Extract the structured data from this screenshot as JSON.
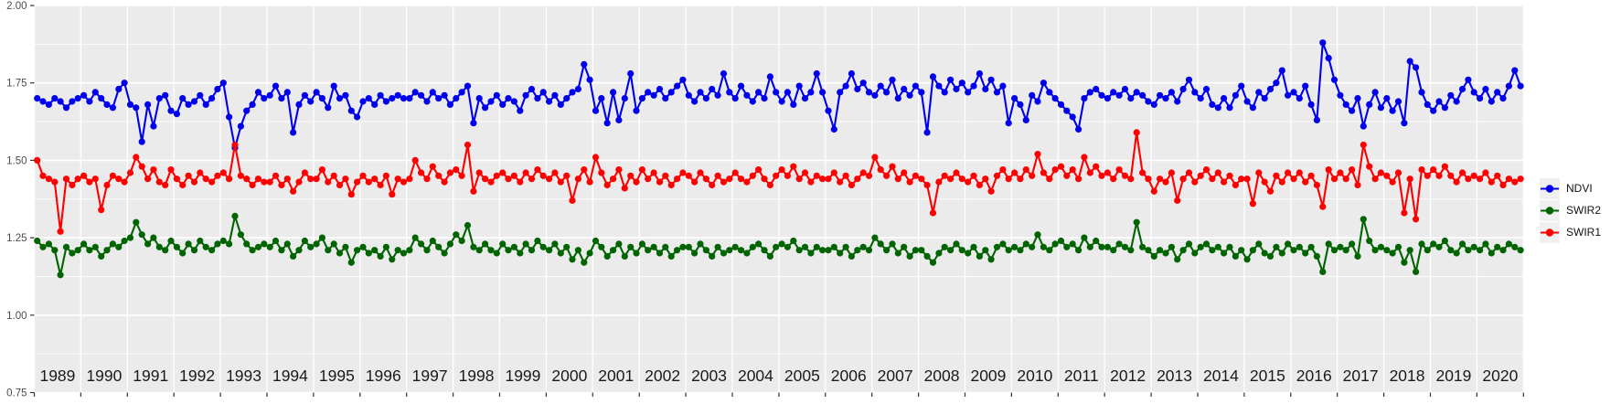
{
  "chart": {
    "title": "",
    "x_axis": {
      "tick_labels": [
        "1989",
        "1990",
        "1991",
        "1992",
        "1993",
        "1994",
        "1995",
        "1996",
        "1997",
        "1998",
        "1999",
        "2000",
        "2001",
        "2002",
        "2003",
        "2004",
        "2005",
        "2006",
        "2007",
        "2008",
        "2009",
        "2010",
        "2011",
        "2012",
        "2013",
        "2014",
        "2015",
        "2016",
        "2017",
        "2018",
        "2019",
        "2020"
      ]
    },
    "y_axis": {
      "tick_labels": [
        "2.00",
        "1.75",
        "1.50",
        "1.25",
        "1.00",
        "0.75"
      ],
      "tick_values": [
        2.0,
        1.75,
        1.5,
        1.25,
        1.0,
        0.75
      ]
    },
    "legend": [
      {
        "label": "NDVI",
        "color": "#0000ee"
      },
      {
        "label": "SWIR2",
        "color": "#006400"
      },
      {
        "label": "SWIR1",
        "color": "#ff0000"
      }
    ],
    "colors": {
      "panel_background": "#ebebeb",
      "gridline": "#ffffff",
      "tick": "#333333",
      "axis_text": "#4d4d4d",
      "year_text": "#1a1a1a",
      "legend_key_background": "#f0f0f0"
    }
  },
  "chart_data": {
    "type": "line",
    "marker": "point",
    "xlim": [
      1989,
      2021
    ],
    "ylim": [
      0.75,
      2.0
    ],
    "y_major_gridlines": [
      0.75,
      1.0,
      1.25,
      1.5,
      1.75,
      2.0
    ],
    "y_minor_gridlines": [
      0.875,
      1.125,
      1.375,
      1.625,
      1.875
    ],
    "x_gridlines_every_year": true,
    "legend_position": "right",
    "x_start": 1989.0625,
    "x_step": 0.125,
    "series": [
      {
        "name": "NDVI",
        "color": "#0000ee",
        "values": [
          1.7,
          1.69,
          1.68,
          1.7,
          1.69,
          1.67,
          1.69,
          1.7,
          1.71,
          1.69,
          1.72,
          1.7,
          1.68,
          1.67,
          1.73,
          1.75,
          1.68,
          1.67,
          1.56,
          1.68,
          1.61,
          1.7,
          1.71,
          1.66,
          1.65,
          1.7,
          1.68,
          1.69,
          1.71,
          1.68,
          1.7,
          1.73,
          1.75,
          1.64,
          1.54,
          1.61,
          1.66,
          1.68,
          1.72,
          1.7,
          1.71,
          1.74,
          1.7,
          1.72,
          1.59,
          1.68,
          1.71,
          1.69,
          1.72,
          1.7,
          1.67,
          1.74,
          1.7,
          1.71,
          1.66,
          1.64,
          1.69,
          1.7,
          1.68,
          1.71,
          1.69,
          1.7,
          1.71,
          1.7,
          1.7,
          1.72,
          1.71,
          1.69,
          1.72,
          1.7,
          1.71,
          1.68,
          1.7,
          1.72,
          1.74,
          1.62,
          1.7,
          1.67,
          1.69,
          1.71,
          1.68,
          1.7,
          1.69,
          1.66,
          1.71,
          1.73,
          1.7,
          1.72,
          1.69,
          1.71,
          1.68,
          1.7,
          1.72,
          1.73,
          1.81,
          1.76,
          1.66,
          1.7,
          1.62,
          1.72,
          1.63,
          1.7,
          1.78,
          1.66,
          1.7,
          1.72,
          1.71,
          1.73,
          1.7,
          1.72,
          1.74,
          1.76,
          1.71,
          1.69,
          1.72,
          1.7,
          1.73,
          1.71,
          1.78,
          1.72,
          1.7,
          1.74,
          1.71,
          1.69,
          1.72,
          1.7,
          1.77,
          1.72,
          1.69,
          1.72,
          1.68,
          1.74,
          1.7,
          1.72,
          1.78,
          1.72,
          1.66,
          1.6,
          1.72,
          1.74,
          1.78,
          1.73,
          1.75,
          1.72,
          1.71,
          1.74,
          1.72,
          1.76,
          1.7,
          1.73,
          1.71,
          1.74,
          1.72,
          1.59,
          1.77,
          1.74,
          1.72,
          1.76,
          1.73,
          1.75,
          1.72,
          1.74,
          1.78,
          1.73,
          1.76,
          1.72,
          1.74,
          1.62,
          1.7,
          1.68,
          1.63,
          1.71,
          1.69,
          1.75,
          1.72,
          1.7,
          1.68,
          1.66,
          1.64,
          1.6,
          1.7,
          1.72,
          1.73,
          1.71,
          1.7,
          1.72,
          1.71,
          1.73,
          1.7,
          1.72,
          1.71,
          1.69,
          1.68,
          1.71,
          1.7,
          1.72,
          1.69,
          1.73,
          1.76,
          1.72,
          1.7,
          1.73,
          1.68,
          1.67,
          1.7,
          1.67,
          1.71,
          1.74,
          1.69,
          1.67,
          1.72,
          1.7,
          1.73,
          1.75,
          1.79,
          1.71,
          1.72,
          1.7,
          1.74,
          1.68,
          1.63,
          1.88,
          1.83,
          1.76,
          1.71,
          1.68,
          1.66,
          1.7,
          1.61,
          1.68,
          1.72,
          1.67,
          1.7,
          1.66,
          1.69,
          1.62,
          1.82,
          1.8,
          1.72,
          1.68,
          1.66,
          1.69,
          1.67,
          1.71,
          1.69,
          1.73,
          1.76,
          1.72,
          1.7,
          1.73,
          1.69,
          1.72,
          1.7,
          1.74,
          1.79,
          1.74
        ]
      },
      {
        "name": "SWIR2",
        "color": "#006400",
        "values": [
          1.24,
          1.22,
          1.23,
          1.21,
          1.13,
          1.22,
          1.2,
          1.21,
          1.23,
          1.21,
          1.22,
          1.19,
          1.21,
          1.23,
          1.22,
          1.24,
          1.25,
          1.3,
          1.26,
          1.23,
          1.25,
          1.22,
          1.21,
          1.24,
          1.22,
          1.2,
          1.23,
          1.21,
          1.24,
          1.22,
          1.21,
          1.23,
          1.24,
          1.23,
          1.32,
          1.26,
          1.23,
          1.21,
          1.22,
          1.23,
          1.22,
          1.24,
          1.21,
          1.23,
          1.19,
          1.21,
          1.24,
          1.22,
          1.23,
          1.25,
          1.21,
          1.23,
          1.2,
          1.22,
          1.17,
          1.21,
          1.22,
          1.2,
          1.21,
          1.19,
          1.22,
          1.18,
          1.21,
          1.2,
          1.21,
          1.25,
          1.23,
          1.21,
          1.24,
          1.22,
          1.2,
          1.23,
          1.26,
          1.24,
          1.29,
          1.22,
          1.21,
          1.23,
          1.21,
          1.2,
          1.23,
          1.21,
          1.22,
          1.2,
          1.23,
          1.21,
          1.24,
          1.22,
          1.21,
          1.23,
          1.2,
          1.22,
          1.18,
          1.21,
          1.17,
          1.2,
          1.24,
          1.22,
          1.19,
          1.21,
          1.23,
          1.19,
          1.22,
          1.2,
          1.23,
          1.21,
          1.22,
          1.2,
          1.22,
          1.19,
          1.21,
          1.22,
          1.22,
          1.2,
          1.23,
          1.21,
          1.19,
          1.22,
          1.2,
          1.21,
          1.22,
          1.21,
          1.2,
          1.22,
          1.23,
          1.21,
          1.19,
          1.22,
          1.23,
          1.22,
          1.24,
          1.21,
          1.22,
          1.2,
          1.22,
          1.21,
          1.21,
          1.22,
          1.2,
          1.22,
          1.19,
          1.21,
          1.22,
          1.21,
          1.25,
          1.23,
          1.21,
          1.23,
          1.2,
          1.22,
          1.19,
          1.21,
          1.21,
          1.19,
          1.17,
          1.2,
          1.22,
          1.21,
          1.23,
          1.21,
          1.2,
          1.22,
          1.19,
          1.21,
          1.18,
          1.22,
          1.23,
          1.21,
          1.22,
          1.21,
          1.23,
          1.22,
          1.26,
          1.22,
          1.21,
          1.23,
          1.24,
          1.22,
          1.23,
          1.21,
          1.25,
          1.22,
          1.24,
          1.22,
          1.22,
          1.21,
          1.23,
          1.22,
          1.21,
          1.3,
          1.22,
          1.21,
          1.19,
          1.21,
          1.2,
          1.22,
          1.18,
          1.21,
          1.23,
          1.2,
          1.22,
          1.23,
          1.21,
          1.22,
          1.2,
          1.22,
          1.19,
          1.21,
          1.18,
          1.21,
          1.23,
          1.2,
          1.19,
          1.22,
          1.2,
          1.23,
          1.21,
          1.22,
          1.2,
          1.22,
          1.19,
          1.14,
          1.23,
          1.21,
          1.22,
          1.21,
          1.23,
          1.19,
          1.31,
          1.24,
          1.21,
          1.22,
          1.21,
          1.2,
          1.22,
          1.17,
          1.21,
          1.14,
          1.23,
          1.21,
          1.23,
          1.22,
          1.24,
          1.21,
          1.2,
          1.23,
          1.21,
          1.22,
          1.21,
          1.23,
          1.2,
          1.22,
          1.21,
          1.23,
          1.22,
          1.21
        ]
      },
      {
        "name": "SWIR1",
        "color": "#ff0000",
        "values": [
          1.5,
          1.45,
          1.44,
          1.43,
          1.27,
          1.44,
          1.42,
          1.44,
          1.45,
          1.43,
          1.44,
          1.34,
          1.42,
          1.45,
          1.44,
          1.43,
          1.46,
          1.51,
          1.48,
          1.44,
          1.47,
          1.43,
          1.42,
          1.47,
          1.44,
          1.42,
          1.45,
          1.43,
          1.46,
          1.44,
          1.43,
          1.45,
          1.46,
          1.44,
          1.55,
          1.45,
          1.44,
          1.42,
          1.44,
          1.43,
          1.43,
          1.45,
          1.42,
          1.44,
          1.4,
          1.43,
          1.46,
          1.44,
          1.44,
          1.47,
          1.43,
          1.45,
          1.42,
          1.44,
          1.39,
          1.43,
          1.45,
          1.43,
          1.44,
          1.42,
          1.45,
          1.39,
          1.44,
          1.43,
          1.44,
          1.5,
          1.46,
          1.44,
          1.48,
          1.45,
          1.43,
          1.46,
          1.47,
          1.45,
          1.55,
          1.4,
          1.46,
          1.44,
          1.43,
          1.45,
          1.46,
          1.44,
          1.45,
          1.43,
          1.46,
          1.44,
          1.47,
          1.45,
          1.44,
          1.46,
          1.43,
          1.45,
          1.37,
          1.44,
          1.47,
          1.43,
          1.51,
          1.46,
          1.42,
          1.44,
          1.47,
          1.41,
          1.45,
          1.43,
          1.47,
          1.44,
          1.46,
          1.43,
          1.45,
          1.42,
          1.44,
          1.46,
          1.45,
          1.43,
          1.46,
          1.44,
          1.42,
          1.45,
          1.43,
          1.44,
          1.46,
          1.44,
          1.43,
          1.45,
          1.47,
          1.44,
          1.42,
          1.45,
          1.47,
          1.45,
          1.48,
          1.44,
          1.46,
          1.43,
          1.45,
          1.44,
          1.44,
          1.46,
          1.43,
          1.45,
          1.42,
          1.44,
          1.46,
          1.45,
          1.51,
          1.47,
          1.45,
          1.48,
          1.44,
          1.46,
          1.43,
          1.45,
          1.44,
          1.42,
          1.33,
          1.43,
          1.45,
          1.44,
          1.46,
          1.44,
          1.43,
          1.45,
          1.42,
          1.44,
          1.4,
          1.45,
          1.47,
          1.44,
          1.46,
          1.44,
          1.47,
          1.45,
          1.52,
          1.46,
          1.44,
          1.47,
          1.48,
          1.45,
          1.47,
          1.44,
          1.51,
          1.46,
          1.48,
          1.45,
          1.46,
          1.44,
          1.47,
          1.45,
          1.44,
          1.59,
          1.46,
          1.44,
          1.4,
          1.44,
          1.43,
          1.46,
          1.37,
          1.44,
          1.46,
          1.43,
          1.45,
          1.47,
          1.44,
          1.46,
          1.43,
          1.45,
          1.42,
          1.44,
          1.44,
          1.36,
          1.46,
          1.43,
          1.4,
          1.45,
          1.43,
          1.46,
          1.44,
          1.46,
          1.43,
          1.45,
          1.42,
          1.35,
          1.47,
          1.44,
          1.46,
          1.44,
          1.47,
          1.42,
          1.55,
          1.48,
          1.44,
          1.46,
          1.45,
          1.43,
          1.46,
          1.33,
          1.44,
          1.31,
          1.47,
          1.45,
          1.47,
          1.45,
          1.48,
          1.45,
          1.43,
          1.46,
          1.44,
          1.45,
          1.44,
          1.46,
          1.43,
          1.45,
          1.42,
          1.44,
          1.43,
          1.44
        ]
      }
    ]
  }
}
